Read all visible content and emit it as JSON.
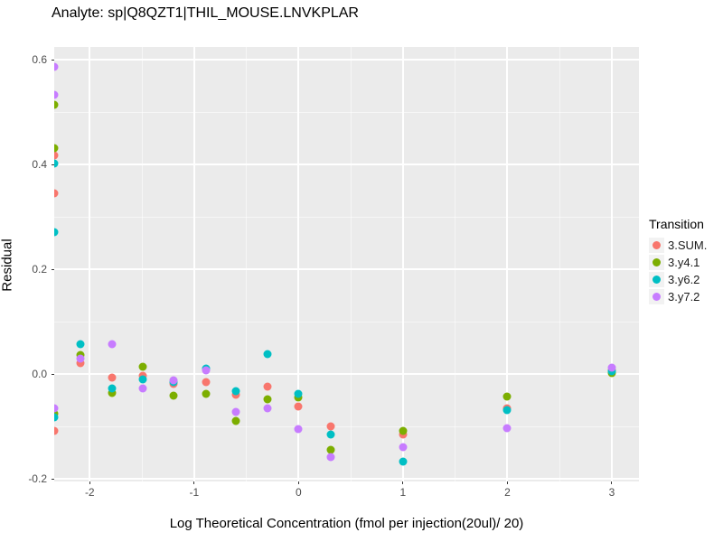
{
  "title": "Analyte: sp|Q8QZT1|THIL_MOUSE.LNVKPLAR",
  "chart_data": {
    "type": "scatter",
    "title": "Analyte: sp|Q8QZT1|THIL_MOUSE.LNVKPLAR",
    "xlabel": "Log Theoretical Concentration (fmol per injection(20ul)/ 20)",
    "ylabel": "Residual",
    "legend_title": "Transition",
    "legend_position": "right",
    "panel_bg": "#EBEBEB",
    "grid_color": "#FFFFFF",
    "tick_label_color": "#4D4D4D",
    "xlim": [
      -2.34,
      3.26
    ],
    "ylim": [
      -0.205,
      0.625
    ],
    "x_ticks": {
      "values": [
        -2,
        -1,
        0,
        1,
        2,
        3
      ],
      "labels": [
        "-2",
        "-1",
        "0",
        "1",
        "2",
        "3"
      ]
    },
    "y_ticks": {
      "values": [
        0.6,
        0.4,
        0.2,
        0.0,
        -0.2
      ],
      "labels": [
        "0.6",
        "0.4",
        "0.2",
        "0.0",
        "-0.2"
      ]
    },
    "x_minor": [
      -1.5,
      -0.5,
      0.5,
      1.5,
      2.5
    ],
    "y_minor": [
      0.5,
      0.3,
      0.1,
      -0.1
    ],
    "series": [
      {
        "name": "3.SUM.",
        "color": "#F8766D",
        "points": [
          [
            -2.34,
            0.418
          ],
          [
            -2.34,
            0.345
          ],
          [
            -2.34,
            -0.108
          ],
          [
            -2.09,
            0.021
          ],
          [
            -1.79,
            -0.007
          ],
          [
            -1.49,
            -0.003
          ],
          [
            -1.2,
            -0.019
          ],
          [
            -0.89,
            -0.016
          ],
          [
            -0.6,
            -0.04
          ],
          [
            -0.3,
            -0.023
          ],
          [
            0,
            -0.061
          ],
          [
            0.31,
            -0.099
          ],
          [
            1,
            -0.115
          ],
          [
            2,
            -0.065
          ],
          [
            3,
            0.008
          ]
        ]
      },
      {
        "name": "3.y4.1",
        "color": "#7CAE00",
        "points": [
          [
            -2.34,
            0.514
          ],
          [
            -2.34,
            0.432
          ],
          [
            -2.34,
            -0.075
          ],
          [
            -2.09,
            0.037
          ],
          [
            -1.79,
            -0.036
          ],
          [
            -1.49,
            0.014
          ],
          [
            -1.2,
            -0.041
          ],
          [
            -0.89,
            -0.038
          ],
          [
            -0.6,
            -0.09
          ],
          [
            -0.3,
            -0.048
          ],
          [
            0,
            -0.045
          ],
          [
            0.31,
            -0.145
          ],
          [
            1,
            -0.109
          ],
          [
            2,
            -0.043
          ],
          [
            3,
            0.002
          ]
        ]
      },
      {
        "name": "3.y6.2",
        "color": "#00BFC4",
        "points": [
          [
            -2.34,
            0.403
          ],
          [
            -2.34,
            0.271
          ],
          [
            -2.34,
            -0.083
          ],
          [
            -2.09,
            0.057
          ],
          [
            -1.79,
            -0.028
          ],
          [
            -1.49,
            -0.01
          ],
          [
            -1.2,
            -0.016
          ],
          [
            -0.89,
            0.01
          ],
          [
            -0.6,
            -0.033
          ],
          [
            -0.3,
            0.038
          ],
          [
            0,
            -0.037
          ],
          [
            0.31,
            -0.116
          ],
          [
            1,
            -0.167
          ],
          [
            2,
            -0.068
          ],
          [
            3,
            0.006
          ]
        ]
      },
      {
        "name": "3.y7.2",
        "color": "#C77CFF",
        "points": [
          [
            -2.34,
            0.587
          ],
          [
            -2.34,
            0.533
          ],
          [
            -2.34,
            -0.066
          ],
          [
            -2.09,
            0.029
          ],
          [
            -1.79,
            0.057
          ],
          [
            -1.49,
            -0.028
          ],
          [
            -1.2,
            -0.012
          ],
          [
            -0.89,
            0.007
          ],
          [
            -0.6,
            -0.072
          ],
          [
            -0.3,
            -0.066
          ],
          [
            0,
            -0.105
          ],
          [
            0.31,
            -0.159
          ],
          [
            1,
            -0.14
          ],
          [
            2,
            -0.103
          ],
          [
            3,
            0.013
          ]
        ]
      }
    ]
  }
}
